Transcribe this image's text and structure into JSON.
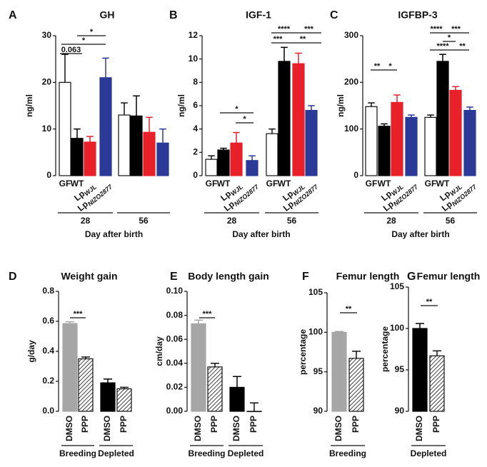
{
  "chart_data": [
    {
      "type": "bar",
      "letter": "A",
      "title": "GH",
      "ylabel": "ng/ml",
      "ylim": [
        0,
        30
      ],
      "yticks": [
        0,
        10,
        20,
        30
      ],
      "xlabel": "Day after birth",
      "groups": [
        {
          "name": "28",
          "categories": [
            "GF",
            "WT",
            {
              "text": "Lp",
              "sub": "WJL"
            },
            {
              "text": "Lp",
              "sub": "NIZO2877"
            }
          ],
          "values": [
            20,
            8,
            7.2,
            21
          ],
          "errors": [
            6,
            2,
            1.2,
            4.2
          ],
          "colors": [
            "#ffffff",
            "#000000",
            "#e8202a",
            "#2b3a97"
          ]
        },
        {
          "name": "56",
          "categories": [
            null,
            null,
            null,
            null
          ],
          "values": [
            13,
            12.8,
            9.3,
            7
          ],
          "errors": [
            2.6,
            4.3,
            3.2,
            3
          ],
          "colors": [
            "#ffffff",
            "#000000",
            "#e8202a",
            "#2b3a97"
          ]
        }
      ],
      "annotations": [
        "0.063",
        "*",
        "*"
      ]
    },
    {
      "type": "bar",
      "letter": "B",
      "title": "IGF-1",
      "ylabel": "ng/ml",
      "ylim": [
        0,
        12
      ],
      "yticks": [
        0,
        2,
        4,
        6,
        8,
        10,
        12
      ],
      "xlabel": "Day after birth",
      "groups": [
        {
          "name": "28",
          "categories": [
            "GF",
            "WT",
            {
              "text": "Lp",
              "sub": "WJL"
            },
            {
              "text": "Lp",
              "sub": "NIZO2877"
            }
          ],
          "values": [
            1.4,
            2.2,
            2.8,
            1.3
          ],
          "errors": [
            0.3,
            0.15,
            0.9,
            0.4
          ],
          "colors": [
            "#ffffff",
            "#000000",
            "#e8202a",
            "#2b3a97"
          ]
        },
        {
          "name": "56",
          "categories": [
            "GF",
            "WT",
            {
              "text": "Lp",
              "sub": "WJL"
            },
            {
              "text": "Lp",
              "sub": "NIZO2877"
            }
          ],
          "values": [
            3.6,
            9.8,
            9.6,
            5.6
          ],
          "errors": [
            0.4,
            1.2,
            0.9,
            0.4
          ],
          "colors": [
            "#ffffff",
            "#000000",
            "#e8202a",
            "#2b3a97"
          ]
        }
      ],
      "annotations": [
        "*",
        "*",
        "****",
        "***",
        "***",
        "**"
      ]
    },
    {
      "type": "bar",
      "letter": "C",
      "title": "IGFBP-3",
      "ylabel": "ng/ml",
      "ylim": [
        0,
        300
      ],
      "yticks": [
        0,
        100,
        200,
        300
      ],
      "xlabel": "Day after birth",
      "groups": [
        {
          "name": "28",
          "categories": [
            "GF",
            "WT",
            {
              "text": "Lp",
              "sub": "WJL"
            },
            {
              "text": "Lp",
              "sub": "NIZO2877"
            }
          ],
          "values": [
            148,
            106,
            157,
            125
          ],
          "errors": [
            8,
            5,
            16,
            5
          ],
          "colors": [
            "#ffffff",
            "#000000",
            "#e8202a",
            "#2b3a97"
          ]
        },
        {
          "name": "56",
          "categories": [
            "GF",
            "WT",
            {
              "text": "Lp",
              "sub": "WJL"
            },
            {
              "text": "Lp",
              "sub": "NIZO2877"
            }
          ],
          "values": [
            125,
            245,
            183,
            140
          ],
          "errors": [
            5,
            15,
            8,
            7
          ],
          "colors": [
            "#ffffff",
            "#000000",
            "#e8202a",
            "#2b3a97"
          ]
        }
      ],
      "annotations": [
        "**",
        "*",
        "****",
        "***",
        "*",
        "****",
        "**"
      ]
    },
    {
      "type": "bar",
      "letter": "D",
      "title": "Weight gain",
      "ylabel": "g/day",
      "ylim": [
        0,
        0.8
      ],
      "yticks": [
        {
          "value": 0,
          "label": "0.0"
        },
        0.2,
        0.4,
        0.6,
        0.8
      ],
      "groups": [
        {
          "name": "Breeding",
          "categories": [
            "DMSO",
            "PPP"
          ],
          "values": [
            0.585,
            0.35
          ],
          "errors": [
            0.012,
            0.012
          ],
          "colors": [
            "#a6a6a6",
            "#000000"
          ],
          "styles": [
            "solid",
            "hatched"
          ]
        },
        {
          "name": "Depleted",
          "categories": [
            "DMSO",
            "PPP"
          ],
          "values": [
            0.19,
            0.15
          ],
          "errors": [
            0.025,
            0.01
          ],
          "colors": [
            "#000000",
            "#000000"
          ],
          "styles": [
            "solid",
            "hatched"
          ]
        }
      ],
      "annotations": [
        "***"
      ]
    },
    {
      "type": "bar",
      "letter": "E",
      "title": "Body length gain",
      "ylabel": "cm/day",
      "ylim": [
        0,
        0.1
      ],
      "yticks": [
        {
          "value": 0,
          "label": "0.00"
        },
        0.02,
        0.04,
        0.06,
        0.08,
        {
          "value": 0.1,
          "label": "0.10"
        }
      ],
      "groups": [
        {
          "name": "Breeding",
          "categories": [
            "DMSO",
            "PPP"
          ],
          "values": [
            0.073,
            0.037
          ],
          "errors": [
            0.003,
            0.003
          ],
          "colors": [
            "#a6a6a6",
            "#000000"
          ],
          "styles": [
            "solid",
            "hatched"
          ]
        },
        {
          "name": "Depleted",
          "categories": [
            "DMSO",
            "PPP"
          ],
          "values": [
            0.02,
            0
          ],
          "errors": [
            0.009,
            0.007
          ],
          "colors": [
            "#000000",
            "#000000"
          ],
          "styles": [
            "solid",
            "hatched"
          ]
        }
      ],
      "annotations": [
        "***"
      ]
    },
    {
      "type": "bar",
      "letter": "F",
      "title": "Femur length",
      "ylabel": "percentage",
      "ylim": [
        90,
        105
      ],
      "yticks": [
        90,
        95,
        100,
        105
      ],
      "groups": [
        {
          "name": "Breeding",
          "categories": [
            "DMSO",
            "PPP"
          ],
          "values": [
            100,
            96.7
          ],
          "errors": [
            0.1,
            0.9
          ],
          "colors": [
            "#a6a6a6",
            "#000000"
          ],
          "styles": [
            "solid",
            "hatched"
          ]
        }
      ],
      "annotations": [
        "**"
      ]
    },
    {
      "type": "bar",
      "letter": "G",
      "title": "Femur length",
      "ylabel": "percentage",
      "ylim": [
        90,
        105
      ],
      "yticks": [
        90,
        95,
        100,
        105
      ],
      "groups": [
        {
          "name": "Depleted",
          "categories": [
            "DMSO",
            "PPP"
          ],
          "values": [
            100,
            96.7
          ],
          "errors": [
            0.6,
            0.6
          ],
          "colors": [
            "#000000",
            "#000000"
          ],
          "styles": [
            "solid",
            "hatched"
          ]
        }
      ],
      "annotations": [
        "**"
      ]
    }
  ]
}
